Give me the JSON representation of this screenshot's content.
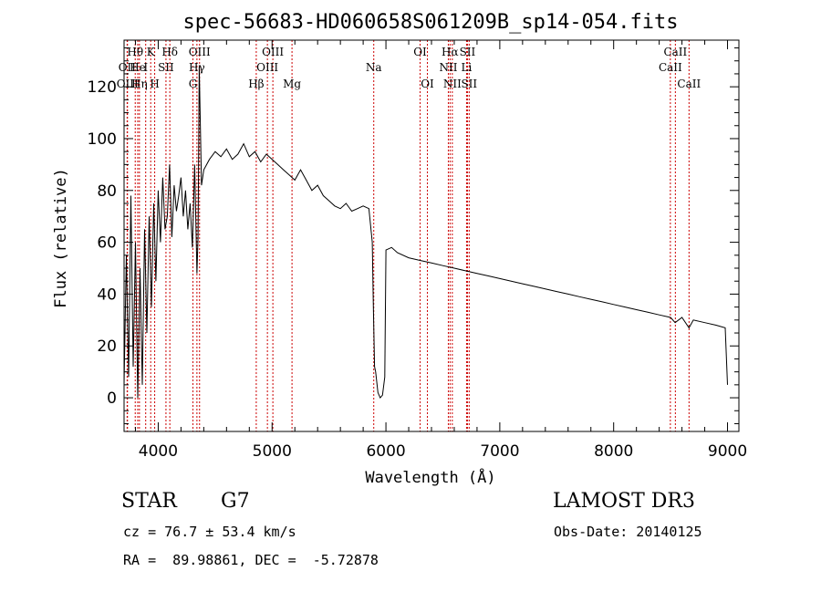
{
  "chart_data": {
    "type": "line",
    "title": "spec-56683-HD060658S061209B_sp14-054.fits",
    "xlabel": "Wavelength (Å)",
    "ylabel": "Flux (relative)",
    "xlim": [
      3700,
      9100
    ],
    "ylim": [
      -13,
      138
    ],
    "xticks": [
      4000,
      5000,
      6000,
      7000,
      8000,
      9000
    ],
    "xtick_labels": [
      "4000",
      "5000",
      "6000",
      "7000",
      "8000",
      "9000"
    ],
    "yticks": [
      0,
      20,
      40,
      60,
      80,
      100,
      120
    ],
    "ytick_labels": [
      "0",
      "20",
      "40",
      "60",
      "80",
      "100",
      "120"
    ],
    "spectrum": {
      "name": "flux",
      "x": [
        3700,
        3720,
        3740,
        3760,
        3780,
        3800,
        3820,
        3840,
        3860,
        3880,
        3900,
        3920,
        3940,
        3960,
        3980,
        4000,
        4020,
        4040,
        4060,
        4080,
        4100,
        4120,
        4140,
        4160,
        4180,
        4200,
        4220,
        4240,
        4260,
        4280,
        4300,
        4320,
        4340,
        4350,
        4360,
        4380,
        4400,
        4450,
        4500,
        4550,
        4600,
        4650,
        4700,
        4750,
        4800,
        4850,
        4900,
        4950,
        5000,
        5050,
        5100,
        5150,
        5200,
        5250,
        5300,
        5350,
        5400,
        5450,
        5500,
        5550,
        5600,
        5650,
        5700,
        5750,
        5800,
        5850,
        5880,
        5890,
        5900,
        5910,
        5930,
        5950,
        5970,
        5990,
        6000,
        6050,
        6100,
        6200,
        6300,
        6400,
        6500,
        6600,
        6700,
        6800,
        6900,
        7000,
        7100,
        7200,
        7300,
        7400,
        7500,
        7600,
        7700,
        7800,
        7900,
        8000,
        8100,
        8200,
        8300,
        8400,
        8500,
        8540,
        8600,
        8662,
        8700,
        8800,
        8900,
        8980,
        9000
      ],
      "y": [
        5,
        55,
        8,
        78,
        12,
        60,
        0,
        50,
        5,
        65,
        25,
        70,
        35,
        75,
        45,
        80,
        60,
        85,
        65,
        70,
        90,
        62,
        82,
        72,
        78,
        85,
        70,
        80,
        65,
        75,
        58,
        90,
        48,
        62,
        128,
        82,
        88,
        92,
        95,
        93,
        96,
        92,
        94,
        98,
        93,
        95,
        91,
        94,
        92,
        90,
        88,
        86,
        84,
        88,
        84,
        80,
        82,
        78,
        76,
        74,
        73,
        75,
        72,
        73,
        74,
        73,
        60,
        35,
        12,
        10,
        2,
        0,
        1,
        8,
        57,
        58,
        56,
        54,
        53,
        52,
        51,
        50,
        49,
        48,
        47,
        46,
        45,
        44,
        43,
        42,
        41,
        40,
        39,
        38,
        37,
        36,
        35,
        34,
        33,
        32,
        31,
        29,
        31,
        27,
        30,
        29,
        28,
        27,
        5
      ]
    },
    "lines": [
      {
        "label": "Hθ",
        "x": 3798,
        "row": 1
      },
      {
        "label": "OII",
        "x": 3727,
        "row": 2
      },
      {
        "label": "OIII",
        "x": 3730,
        "row": 3
      },
      {
        "label": "He",
        "x": 3820,
        "row": 2
      },
      {
        "label": "Hη",
        "x": 3835,
        "row": 3
      },
      {
        "label": "K",
        "x": 3934,
        "row": 1
      },
      {
        "label": "I",
        "x": 3890,
        "row": 2
      },
      {
        "label": "H",
        "x": 3969,
        "row": 3
      },
      {
        "label": "Hδ",
        "x": 4102,
        "row": 1
      },
      {
        "label": "SII",
        "x": 4068,
        "row": 2
      },
      {
        "label": "OIII",
        "x": 4363,
        "row": 1
      },
      {
        "label": "Hγ",
        "x": 4340,
        "row": 2
      },
      {
        "label": "G",
        "x": 4305,
        "row": 3
      },
      {
        "label": "Hβ",
        "x": 4861,
        "row": 3
      },
      {
        "label": "OIII",
        "x": 5007,
        "row": 1
      },
      {
        "label": "OIII",
        "x": 4959,
        "row": 2
      },
      {
        "label": "Mg",
        "x": 5175,
        "row": 3
      },
      {
        "label": "Na",
        "x": 5893,
        "row": 2
      },
      {
        "label": "OI",
        "x": 6300,
        "row": 1
      },
      {
        "label": "OI",
        "x": 6364,
        "row": 3
      },
      {
        "label": "Hα",
        "x": 6563,
        "row": 1
      },
      {
        "label": "SII",
        "x": 6716,
        "row": 1
      },
      {
        "label": "NII",
        "x": 6548,
        "row": 2
      },
      {
        "label": "Li",
        "x": 6708,
        "row": 2
      },
      {
        "label": "NII",
        "x": 6583,
        "row": 3
      },
      {
        "label": "SII",
        "x": 6731,
        "row": 3
      },
      {
        "label": "CaII",
        "x": 8542,
        "row": 1
      },
      {
        "label": "CaII",
        "x": 8498,
        "row": 2
      },
      {
        "label": "CaII",
        "x": 8662,
        "row": 3
      }
    ]
  },
  "info": {
    "object_type": "STAR",
    "subclass": "G7",
    "survey": "LAMOST DR3",
    "cz": "cz = 76.7 ± 53.4 km/s",
    "obs_date": "Obs-Date: 20140125",
    "coords": "RA =  89.98861, DEC =  -5.72878"
  }
}
